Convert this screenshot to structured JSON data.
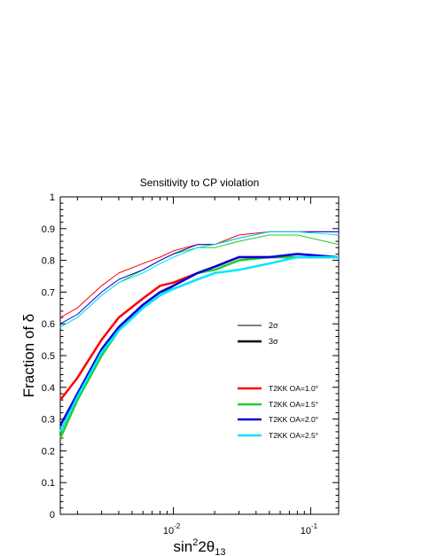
{
  "chart_data": {
    "type": "line",
    "title": "Sensitivity to CP violation",
    "xlabel_base": "sin",
    "xlabel_sup": "2",
    "xlabel_mid": "2θ",
    "xlabel_sub": "13",
    "ylabel": "Fraction of δ",
    "x_scale": "log",
    "xlim": [
      0.0015,
      0.16
    ],
    "ylim": [
      0,
      1
    ],
    "grid": false,
    "legend_position": "center-right",
    "y_ticks": [
      {
        "value": 0,
        "label": "0"
      },
      {
        "value": 0.1,
        "label": "0.1"
      },
      {
        "value": 0.2,
        "label": "0.2"
      },
      {
        "value": 0.3,
        "label": "0.3"
      },
      {
        "value": 0.4,
        "label": "0.4"
      },
      {
        "value": 0.5,
        "label": "0.5"
      },
      {
        "value": 0.6,
        "label": "0.6"
      },
      {
        "value": 0.7,
        "label": "0.7"
      },
      {
        "value": 0.8,
        "label": "0.8"
      },
      {
        "value": 0.9,
        "label": "0.9"
      },
      {
        "value": 1,
        "label": "1"
      }
    ],
    "x_ticks": [
      {
        "value": 0.01,
        "base": "10",
        "exp": "-2"
      },
      {
        "value": 0.1,
        "base": "10",
        "exp": "-1"
      }
    ],
    "style_legend": [
      {
        "label": "2σ",
        "width": 1
      },
      {
        "label": "3σ",
        "width": 2.5
      }
    ],
    "colors": {
      "oa10": "#ff0000",
      "oa15": "#22cc22",
      "oa20": "#0000dd",
      "oa25": "#00e5ff"
    },
    "series": [
      {
        "name": "T2KK OA=1.0°",
        "color_key": "oa10",
        "x2": [
          0.0015,
          0.002,
          0.003,
          0.004,
          0.006,
          0.008,
          0.01,
          0.015,
          0.02,
          0.03,
          0.05,
          0.08,
          0.16
        ],
        "y2": [
          0.62,
          0.65,
          0.72,
          0.76,
          0.79,
          0.81,
          0.83,
          0.85,
          0.85,
          0.88,
          0.89,
          0.89,
          0.89
        ],
        "x3": [
          0.0015,
          0.002,
          0.003,
          0.004,
          0.006,
          0.008,
          0.01,
          0.015,
          0.02,
          0.03,
          0.05,
          0.08,
          0.16
        ],
        "y3": [
          0.36,
          0.43,
          0.55,
          0.62,
          0.68,
          0.72,
          0.73,
          0.76,
          0.78,
          0.81,
          0.81,
          0.81,
          0.81
        ]
      },
      {
        "name": "T2KK OA=1.5°",
        "color_key": "oa15",
        "x2": [
          0.0015,
          0.002,
          0.003,
          0.004,
          0.006,
          0.008,
          0.01,
          0.015,
          0.02,
          0.03,
          0.05,
          0.08,
          0.16
        ],
        "y2": [
          0.59,
          0.62,
          0.69,
          0.73,
          0.77,
          0.8,
          0.82,
          0.84,
          0.84,
          0.86,
          0.88,
          0.88,
          0.85
        ],
        "x3": [
          0.0015,
          0.002,
          0.003,
          0.004,
          0.006,
          0.008,
          0.01,
          0.015,
          0.02,
          0.03,
          0.05,
          0.08,
          0.16
        ],
        "y3": [
          0.24,
          0.36,
          0.5,
          0.58,
          0.65,
          0.69,
          0.72,
          0.76,
          0.77,
          0.8,
          0.81,
          0.81,
          0.81
        ]
      },
      {
        "name": "T2KK OA=2.0°",
        "color_key": "oa20",
        "x2": [
          0.0015,
          0.002,
          0.003,
          0.004,
          0.006,
          0.008,
          0.01,
          0.015,
          0.02,
          0.03,
          0.05,
          0.08,
          0.16
        ],
        "y2": [
          0.6,
          0.63,
          0.7,
          0.74,
          0.77,
          0.8,
          0.82,
          0.85,
          0.85,
          0.87,
          0.89,
          0.89,
          0.89
        ],
        "x3": [
          0.0015,
          0.002,
          0.003,
          0.004,
          0.006,
          0.008,
          0.01,
          0.015,
          0.02,
          0.03,
          0.05,
          0.08,
          0.16
        ],
        "y3": [
          0.28,
          0.38,
          0.52,
          0.59,
          0.66,
          0.7,
          0.72,
          0.76,
          0.78,
          0.81,
          0.81,
          0.82,
          0.81
        ]
      },
      {
        "name": "T2KK OA=2.5°",
        "color_key": "oa25",
        "x2": [
          0.0015,
          0.002,
          0.003,
          0.004,
          0.006,
          0.008,
          0.01,
          0.015,
          0.02,
          0.03,
          0.05,
          0.08,
          0.16
        ],
        "y2": [
          0.59,
          0.62,
          0.69,
          0.73,
          0.76,
          0.79,
          0.81,
          0.84,
          0.85,
          0.87,
          0.89,
          0.89,
          0.88
        ],
        "x3": [
          0.0015,
          0.002,
          0.003,
          0.004,
          0.006,
          0.008,
          0.01,
          0.015,
          0.02,
          0.03,
          0.05,
          0.08,
          0.16
        ],
        "y3": [
          0.26,
          0.37,
          0.51,
          0.58,
          0.65,
          0.69,
          0.71,
          0.74,
          0.76,
          0.77,
          0.79,
          0.81,
          0.81
        ]
      }
    ]
  }
}
